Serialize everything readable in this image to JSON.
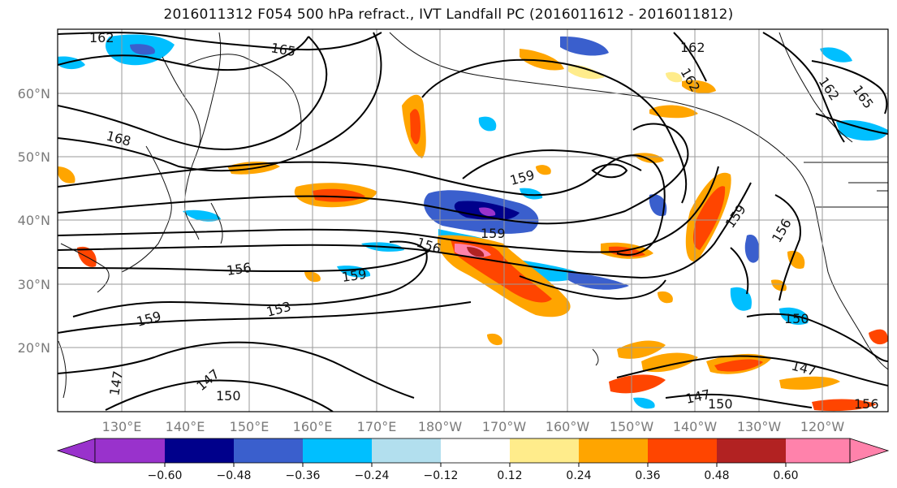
{
  "title": "2016011312 F054 500 hPa refract., IVT Landfall PC (2016011612 - 2016011812)",
  "map": {
    "lat_labels": [
      "60°N",
      "50°N",
      "40°N",
      "30°N",
      "20°N"
    ],
    "lon_labels": [
      "130°E",
      "140°E",
      "150°E",
      "160°E",
      "170°E",
      "180°W",
      "170°W",
      "160°W",
      "150°W",
      "140°W",
      "130°W",
      "120°W"
    ],
    "grid": true
  },
  "contour_labels": [
    "162",
    "165",
    "168",
    "159",
    "156",
    "159",
    "156",
    "159",
    "159",
    "153",
    "147",
    "147",
    "150",
    "162",
    "162",
    "162",
    "165",
    "159",
    "156",
    "150",
    "147",
    "147",
    "150",
    "156"
  ],
  "colorbar": {
    "ticks": [
      "−0.60",
      "−0.48",
      "−0.36",
      "−0.24",
      "−0.12",
      "0.12",
      "0.24",
      "0.36",
      "0.48",
      "0.60"
    ],
    "colors": [
      "#9932cc",
      "#00008b",
      "#3a5fcd",
      "#00bfff",
      "#b2dfee",
      "#ffffff",
      "#ffec8b",
      "#ffa500",
      "#ff4500",
      "#b22222",
      "#ff82ab"
    ]
  }
}
